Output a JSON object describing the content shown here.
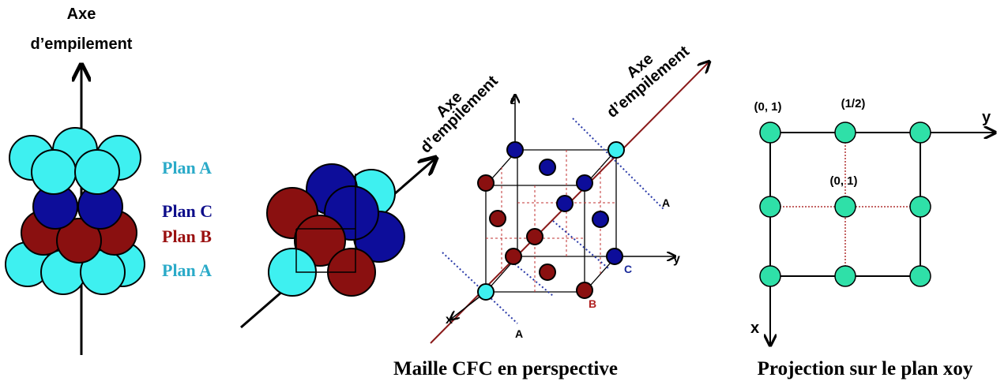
{
  "stacking": {
    "axis_label": [
      "Axe",
      "d’empilement"
    ],
    "planes": [
      "Plan A",
      "Plan C",
      "Plan B",
      "Plan A"
    ]
  },
  "perspective": {
    "axis_label": [
      "Axe",
      "d’empilement"
    ]
  },
  "cfc": {
    "axis_label": [
      "Axe",
      "d’empilement"
    ],
    "axes": [
      "z",
      "y",
      "x"
    ],
    "planes": [
      "A",
      "A",
      "B",
      "C"
    ],
    "caption": "Maille CFC en perspective"
  },
  "projection": {
    "labels": [
      "(0, 1)",
      "(1/2)",
      "(0, 1)"
    ],
    "axes": [
      "y",
      "x"
    ],
    "caption": "Projection sur le plan xoy"
  }
}
